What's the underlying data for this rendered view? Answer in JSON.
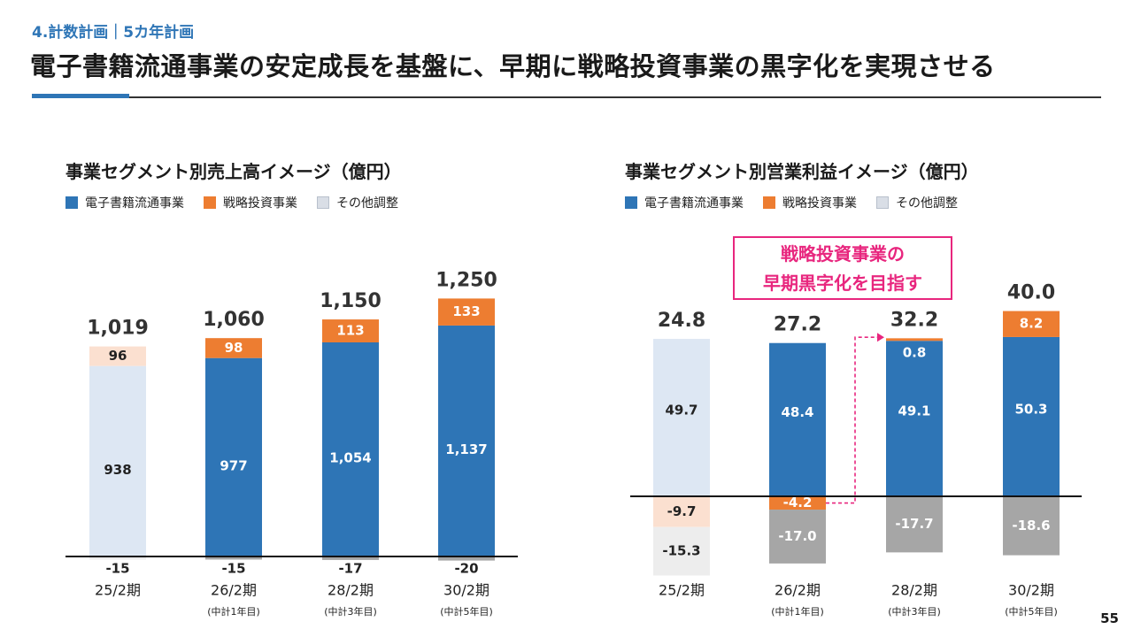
{
  "header": {
    "section": "4.計数計画｜5カ年計画",
    "title": "電子書籍流通事業の安定成長を基盤に、早期に戦略投資事業の黒字化を実現させる"
  },
  "page_number": "55",
  "callout": {
    "line1": "戦略投資事業の",
    "line2": "早期黒字化を目指す"
  },
  "colors": {
    "blue": "#2e75b6",
    "orange": "#ed7d31",
    "gray": "#a6a6a6",
    "light_blue": "#dde7f3",
    "light_orange": "#fbe0d0",
    "light_gray": "#ededed",
    "pink": "#e8267e"
  },
  "legend": [
    "電子書籍流通事業",
    "戦略投資事業",
    "その他調整"
  ],
  "chart_data": [
    {
      "type": "bar",
      "stacked": true,
      "title": "事業セグメント別売上高イメージ（億円）",
      "categories": [
        "25/2期",
        "26/2期",
        "28/2期",
        "30/2期"
      ],
      "subcategories": [
        "",
        "(中計1年目)",
        "(中計3年目)",
        "(中計5年目)"
      ],
      "series": [
        {
          "name": "電子書籍流通事業",
          "values": [
            938,
            977,
            1054,
            1137
          ],
          "labels": [
            "938",
            "977",
            "1,054",
            "1,137"
          ]
        },
        {
          "name": "戦略投資事業",
          "values": [
            96,
            98,
            113,
            133
          ],
          "labels": [
            "96",
            "98",
            "113",
            "133"
          ]
        },
        {
          "name": "その他調整",
          "values": [
            -15,
            -15,
            -17,
            -20
          ],
          "labels": [
            "-15",
            "-15",
            "-17",
            "-20"
          ]
        }
      ],
      "totals": [
        1019,
        1060,
        1150,
        1250
      ],
      "total_labels": [
        "1,019",
        "1,060",
        "1,150",
        "1,250"
      ],
      "ylim": [
        -20,
        1250
      ]
    },
    {
      "type": "bar",
      "stacked": true,
      "title": "事業セグメント別営業利益イメージ（億円）",
      "categories": [
        "25/2期",
        "26/2期",
        "28/2期",
        "30/2期"
      ],
      "subcategories": [
        "",
        "(中計1年目)",
        "(中計3年目)",
        "(中計5年目)"
      ],
      "series": [
        {
          "name": "電子書籍流通事業",
          "values": [
            49.7,
            48.4,
            49.1,
            50.3
          ],
          "labels": [
            "49.7",
            "48.4",
            "49.1",
            "50.3"
          ]
        },
        {
          "name": "戦略投資事業",
          "values": [
            -9.7,
            -4.2,
            0.8,
            8.2
          ],
          "labels": [
            "-9.7",
            "-4.2",
            "0.8",
            "8.2"
          ]
        },
        {
          "name": "その他調整",
          "values": [
            -15.3,
            -17.0,
            -17.7,
            -18.6
          ],
          "labels": [
            "-15.3",
            "-17.0",
            "-17.7",
            "-18.6"
          ]
        }
      ],
      "totals": [
        24.8,
        27.2,
        32.2,
        40.0
      ],
      "total_labels": [
        "24.8",
        "27.2",
        "32.2",
        "40.0"
      ],
      "ylim": [
        -25,
        58.5
      ]
    }
  ]
}
